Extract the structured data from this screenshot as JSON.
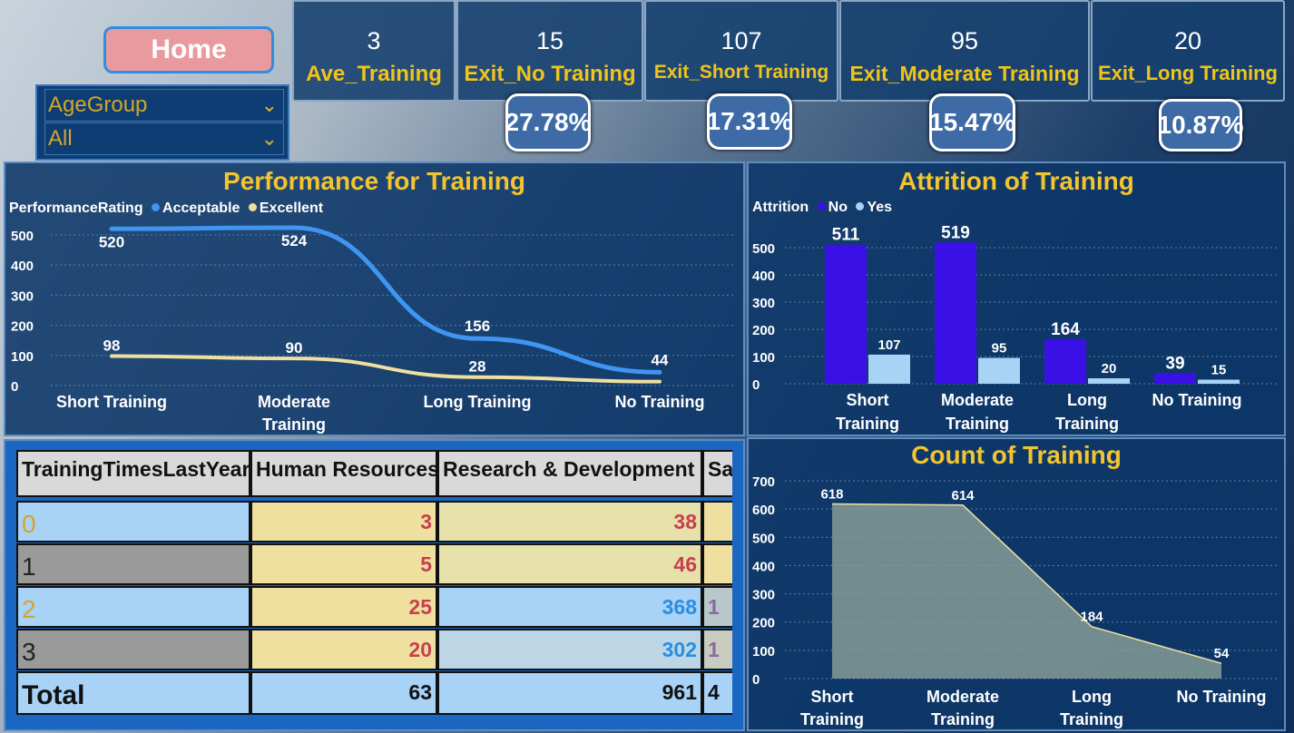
{
  "home_label": "Home",
  "slicer": {
    "field": "AgeGroup",
    "value": "All"
  },
  "kpis": [
    {
      "value": "3",
      "label": "Ave_Training"
    },
    {
      "value": "15",
      "label": "Exit_No Training"
    },
    {
      "value": "107",
      "label": "Exit_Short Training"
    },
    {
      "value": "95",
      "label": "Exit_Moderate Training"
    },
    {
      "value": "20",
      "label": "Exit_Long Training"
    }
  ],
  "percents": [
    "27.78%",
    "17.31%",
    "15.47%",
    "10.87%"
  ],
  "chart_data": [
    {
      "type": "line",
      "title": "Performance for Training",
      "legend_title": "PerformanceRating",
      "categories": [
        "Short Training",
        "Moderate Training",
        "Long Training",
        "No Training"
      ],
      "series": [
        {
          "name": "Acceptable",
          "values": [
            520,
            524,
            156,
            44
          ],
          "color": "#3f95f0"
        },
        {
          "name": "Excellent",
          "values": [
            98,
            90,
            28,
            13
          ],
          "color": "#efe0a0"
        }
      ],
      "value_labels": {
        "Acceptable": [
          "520",
          "524",
          "156",
          "44"
        ],
        "Excellent": [
          "98",
          "90",
          "28",
          ""
        ]
      },
      "yticks": [
        "0",
        "100",
        "200",
        "300",
        "400",
        "500"
      ],
      "ylim": [
        0,
        560
      ],
      "legend_position": "top-left"
    },
    {
      "type": "bar",
      "title": "Attrition of Training",
      "legend_title": "Attrition",
      "categories": [
        "Short Training",
        "Moderate Training",
        "Long Training",
        "No Training"
      ],
      "series": [
        {
          "name": "No",
          "values": [
            511,
            519,
            164,
            39
          ],
          "color": "#3b10e6"
        },
        {
          "name": "Yes",
          "values": [
            107,
            95,
            20,
            15
          ],
          "color": "#a9d3f5"
        }
      ],
      "yticks": [
        "0",
        "100",
        "200",
        "300",
        "400",
        "500"
      ],
      "ylim": [
        0,
        560
      ],
      "legend_position": "top-left"
    },
    {
      "type": "area",
      "title": "Count of Training",
      "categories": [
        "Short Training",
        "Moderate Training",
        "Long Training",
        "No Training"
      ],
      "values": [
        618,
        614,
        184,
        54
      ],
      "yticks": [
        "0",
        "100",
        "200",
        "300",
        "400",
        "500",
        "600",
        "700"
      ],
      "ylim": [
        0,
        700
      ]
    }
  ],
  "table": {
    "headers": [
      "TrainingTimesLastYear",
      "Human Resources",
      "Research & Development",
      "Sales"
    ],
    "rows": [
      {
        "label": "0",
        "hr": "3",
        "rd": "38",
        "sales": ""
      },
      {
        "label": "1",
        "hr": "5",
        "rd": "46",
        "sales": ""
      },
      {
        "label": "2",
        "hr": "25",
        "rd": "368",
        "sales": "1"
      },
      {
        "label": "3",
        "hr": "20",
        "rd": "302",
        "sales": "1"
      }
    ],
    "total": {
      "label": "Total",
      "hr": "63",
      "rd": "961",
      "sales": "4"
    }
  }
}
